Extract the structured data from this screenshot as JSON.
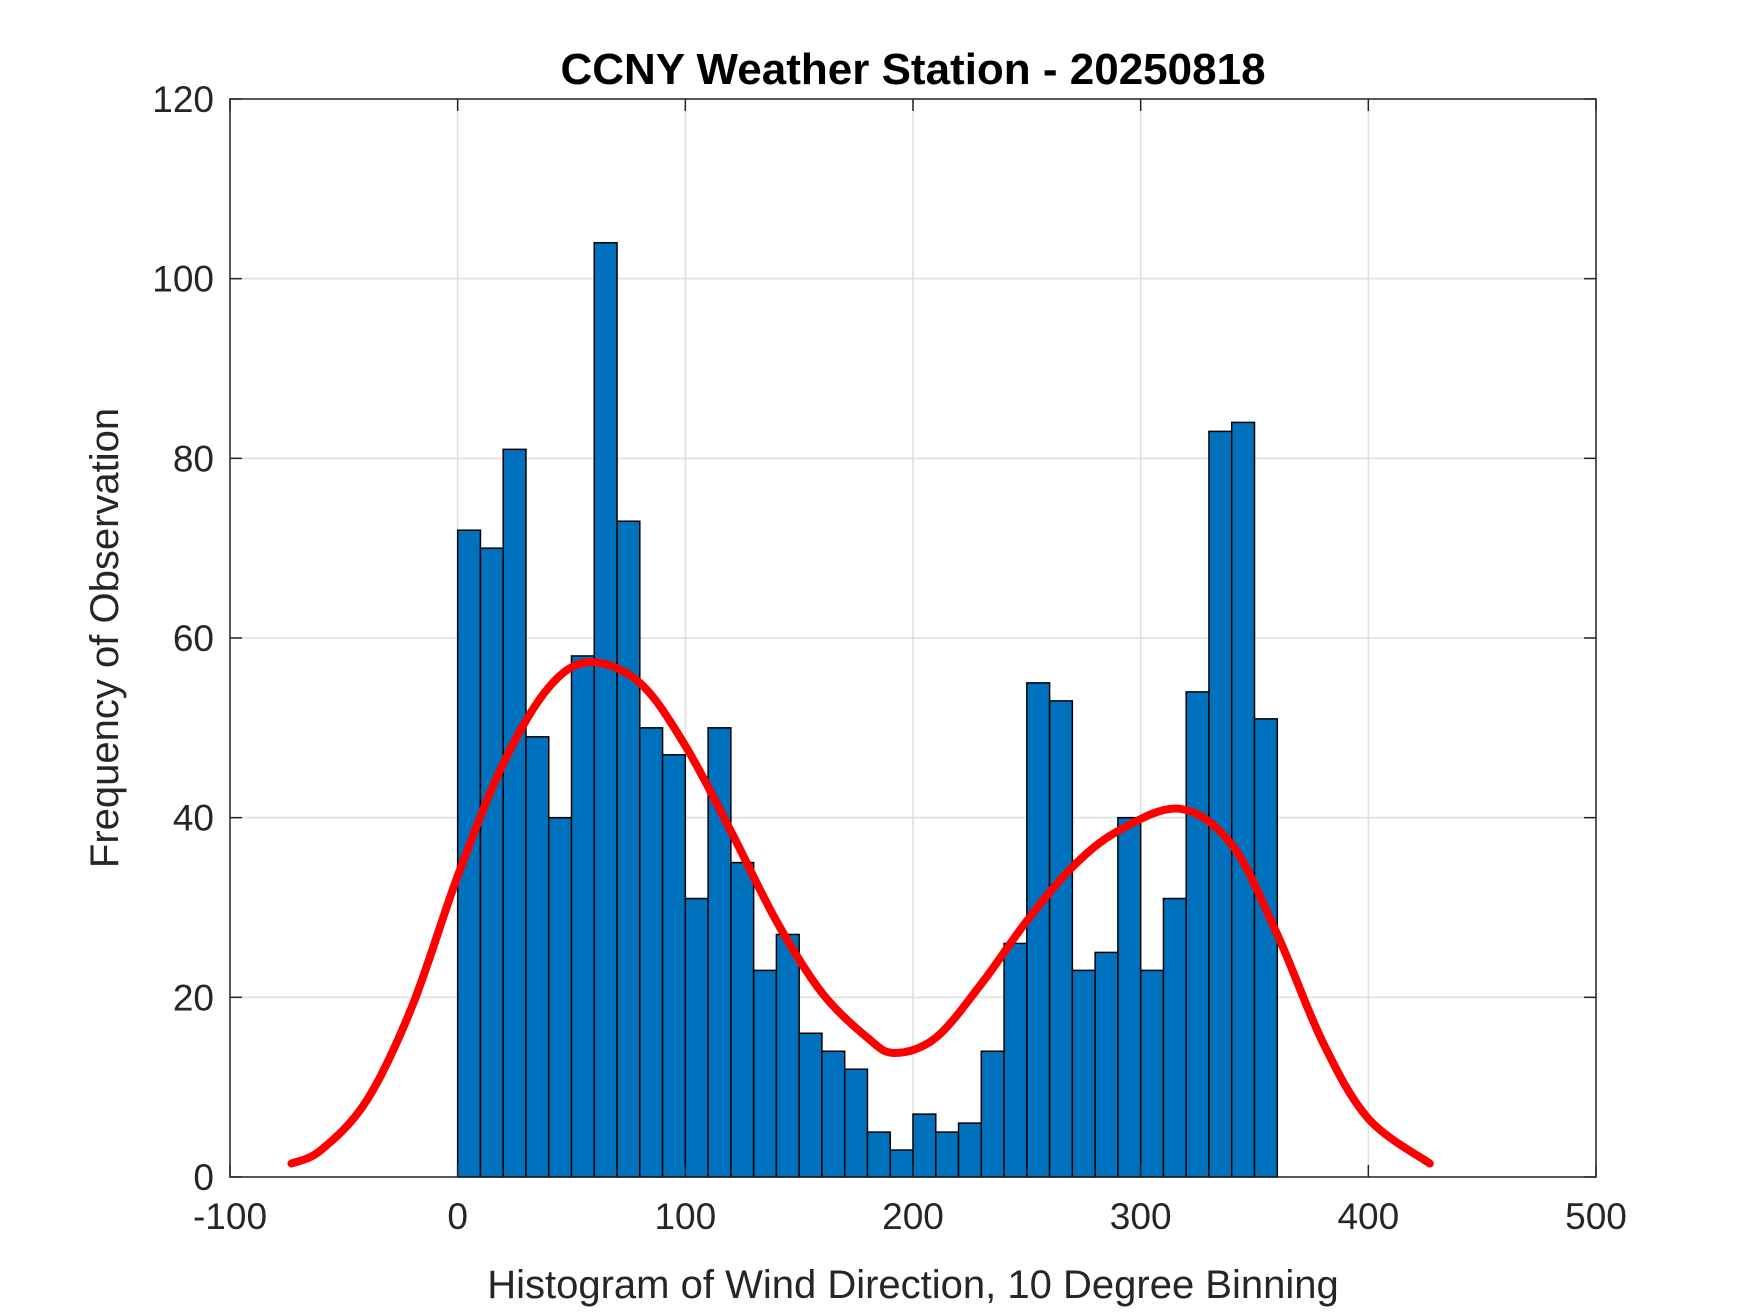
{
  "chart_data": {
    "type": "bar",
    "title": "CCNY Weather Station - 20250818",
    "xlabel": "Histogram of Wind Direction, 10 Degree Binning",
    "ylabel": "Frequency of Observation",
    "xlim": [
      -100,
      500
    ],
    "ylim": [
      0,
      120
    ],
    "xticks": [
      -100,
      0,
      100,
      200,
      300,
      400,
      500
    ],
    "yticks": [
      0,
      20,
      40,
      60,
      80,
      100,
      120
    ],
    "grid": true,
    "bin_width": 10,
    "bin_start": 0,
    "values": [
      72,
      70,
      81,
      49,
      40,
      58,
      104,
      73,
      50,
      47,
      31,
      50,
      35,
      23,
      27,
      16,
      14,
      12,
      5,
      3,
      7,
      5,
      6,
      14,
      26,
      55,
      53,
      23,
      25,
      40,
      23,
      31,
      54,
      83,
      84,
      51
    ],
    "bar_color": "#0072BD",
    "fit": {
      "type": "line",
      "color": "#FF0000",
      "x": [
        -73,
        -60,
        -40,
        -20,
        0,
        20,
        40,
        58,
        80,
        100,
        120,
        140,
        160,
        180,
        192,
        210,
        230,
        250,
        270,
        290,
        317,
        340,
        360,
        380,
        400,
        427
      ],
      "y": [
        1.5,
        3.0,
        8.5,
        19.0,
        33.5,
        46.0,
        54.5,
        57.3,
        55.0,
        48.0,
        38.5,
        28.5,
        20.5,
        15.5,
        13.8,
        15.5,
        21.5,
        28.5,
        34.5,
        38.5,
        41.0,
        37.0,
        27.0,
        15.0,
        6.5,
        1.5
      ]
    }
  }
}
